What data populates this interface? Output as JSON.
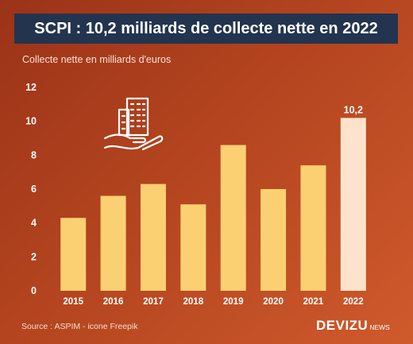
{
  "title": "SCPI : 10,2 milliards de collecte nette en 2022",
  "unit_label": "Collecte nette en milliards d'euros",
  "source": "Source : ASPIM - icone Freepik",
  "brand": {
    "main": "DEVIZU",
    "sub": "NEWS"
  },
  "icon": "building-in-hand-icon",
  "colors": {
    "bar": "#fbd072",
    "bar_highlight": "#fde3cb",
    "title_bg": "#23344f",
    "background_start": "#9b3318",
    "background_end": "#cf5a2c"
  },
  "chart_data": {
    "type": "bar",
    "title": "SCPI : 10,2 milliards de collecte nette en 2022",
    "ylabel": "Collecte nette en milliards d'euros",
    "xlabel": "",
    "categories": [
      "2015",
      "2016",
      "2017",
      "2018",
      "2019",
      "2020",
      "2021",
      "2022"
    ],
    "values": [
      4.3,
      5.6,
      6.3,
      5.1,
      8.6,
      6.0,
      7.4,
      10.2
    ],
    "highlight_index": 7,
    "data_labels": [
      {
        "index": 7,
        "text": "10,2"
      }
    ],
    "ylim": [
      0,
      12
    ],
    "yticks": [
      0,
      2,
      4,
      6,
      8,
      10,
      12
    ],
    "grid": false,
    "legend": "none"
  }
}
